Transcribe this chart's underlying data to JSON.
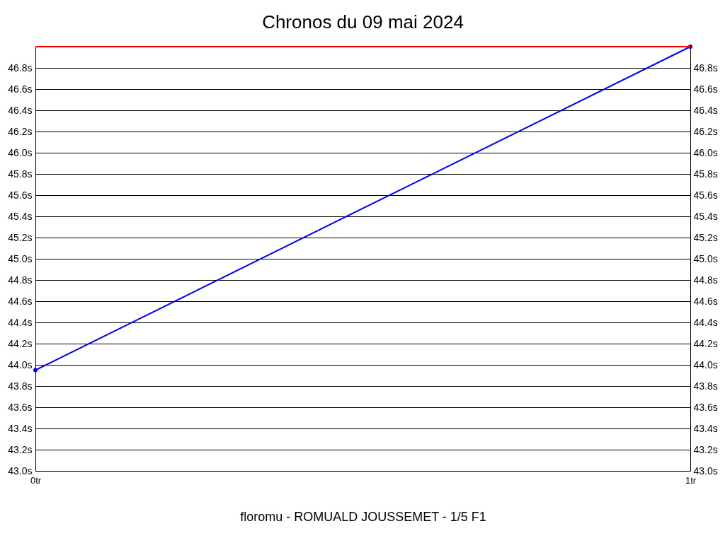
{
  "chart_data": {
    "type": "line",
    "title": "Chronos du 09 mai 2024",
    "xlabel": "floromu - ROMUALD JOUSSEMET - 1/5 F1",
    "x": [
      0,
      1
    ],
    "series": [
      {
        "color": "#0000ff",
        "values": [
          43.95,
          47.0
        ]
      }
    ],
    "xlim": [
      0,
      1
    ],
    "xticks": [
      {
        "value": 0,
        "label": "0tr"
      },
      {
        "value": 1,
        "label": "1tr"
      }
    ],
    "ylim": [
      43.0,
      47.0
    ],
    "yticks": [
      {
        "value": 43.0,
        "label": "43.0s"
      },
      {
        "value": 43.2,
        "label": "43.2s"
      },
      {
        "value": 43.4,
        "label": "43.4s"
      },
      {
        "value": 43.6,
        "label": "43.6s"
      },
      {
        "value": 43.8,
        "label": "43.8s"
      },
      {
        "value": 44.0,
        "label": "44.0s"
      },
      {
        "value": 44.2,
        "label": "44.2s"
      },
      {
        "value": 44.4,
        "label": "44.4s"
      },
      {
        "value": 44.6,
        "label": "44.6s"
      },
      {
        "value": 44.8,
        "label": "44.8s"
      },
      {
        "value": 45.0,
        "label": "45.0s"
      },
      {
        "value": 45.2,
        "label": "45.2s"
      },
      {
        "value": 45.4,
        "label": "45.4s"
      },
      {
        "value": 45.6,
        "label": "45.6s"
      },
      {
        "value": 45.8,
        "label": "45.8s"
      },
      {
        "value": 46.0,
        "label": "46.0s"
      },
      {
        "value": 46.2,
        "label": "46.2s"
      },
      {
        "value": 46.4,
        "label": "46.4s"
      },
      {
        "value": 46.6,
        "label": "46.6s"
      },
      {
        "value": 46.8,
        "label": "46.8s"
      }
    ],
    "y2lim": [
      43.0,
      47.0
    ],
    "y2ticks": [
      {
        "value": 43.0,
        "label": "43.0s"
      },
      {
        "value": 43.2,
        "label": "43.2s"
      },
      {
        "value": 43.4,
        "label": "43.4s"
      },
      {
        "value": 43.6,
        "label": "43.6s"
      },
      {
        "value": 43.8,
        "label": "43.8s"
      },
      {
        "value": 44.0,
        "label": "44.0s"
      },
      {
        "value": 44.2,
        "label": "44.2s"
      },
      {
        "value": 44.4,
        "label": "44.4s"
      },
      {
        "value": 44.6,
        "label": "44.6s"
      },
      {
        "value": 44.8,
        "label": "44.8s"
      },
      {
        "value": 45.0,
        "label": "45.0s"
      },
      {
        "value": 45.2,
        "label": "45.2s"
      },
      {
        "value": 45.4,
        "label": "45.4s"
      },
      {
        "value": 45.6,
        "label": "45.6s"
      },
      {
        "value": 45.8,
        "label": "45.8s"
      },
      {
        "value": 46.0,
        "label": "46.0s"
      },
      {
        "value": 46.2,
        "label": "46.2s"
      },
      {
        "value": 46.4,
        "label": "46.4s"
      },
      {
        "value": 46.6,
        "label": "46.6s"
      },
      {
        "value": 46.8,
        "label": "46.8s"
      }
    ],
    "ref_lines": [
      {
        "axis": "y2",
        "value": 47.0,
        "color": "#ff0000"
      }
    ],
    "grid": "y",
    "marker": "circle",
    "line_style": "solid"
  }
}
